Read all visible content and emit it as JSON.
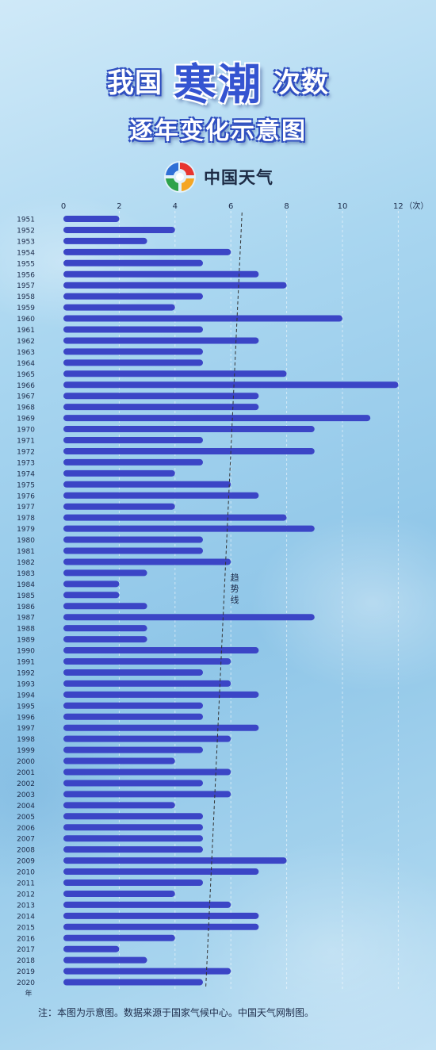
{
  "header": {
    "title_left": "我国",
    "title_main": "寒潮",
    "title_right": "次数",
    "subtitle": "逐年变化示意图"
  },
  "brand": {
    "logo_text": "中国天气"
  },
  "colors": {
    "bar": "#3b45c6",
    "bar_highlight": "#5a66e0",
    "title_blue": "#3554d1",
    "trend_line": "#333333"
  },
  "chart_data": {
    "type": "bar",
    "orientation": "horizontal",
    "title": "我国寒潮次数逐年变化示意图",
    "xlabel": "（次）",
    "ylabel": "年",
    "xlim": [
      0,
      12
    ],
    "x_ticks": [
      0,
      2,
      4,
      6,
      8,
      10,
      12
    ],
    "categories": [
      "1951",
      "1952",
      "1953",
      "1954",
      "1955",
      "1956",
      "1957",
      "1958",
      "1959",
      "1960",
      "1961",
      "1962",
      "1963",
      "1964",
      "1965",
      "1966",
      "1967",
      "1968",
      "1969",
      "1970",
      "1971",
      "1972",
      "1973",
      "1974",
      "1975",
      "1976",
      "1977",
      "1978",
      "1979",
      "1980",
      "1981",
      "1982",
      "1983",
      "1984",
      "1985",
      "1986",
      "1987",
      "1988",
      "1989",
      "1990",
      "1991",
      "1992",
      "1993",
      "1994",
      "1995",
      "1996",
      "1997",
      "1998",
      "1999",
      "2000",
      "2001",
      "2002",
      "2003",
      "2004",
      "2005",
      "2006",
      "2007",
      "2008",
      "2009",
      "2010",
      "2011",
      "2012",
      "2013",
      "2014",
      "2015",
      "2016",
      "2017",
      "2018",
      "2019",
      "2020"
    ],
    "values": [
      2,
      4,
      3,
      6,
      5,
      7,
      8,
      5,
      4,
      10,
      5,
      7,
      5,
      5,
      8,
      12,
      7,
      7,
      11,
      9,
      5,
      9,
      5,
      4,
      6,
      7,
      4,
      8,
      9,
      5,
      5,
      6,
      3,
      2,
      2,
      3,
      9,
      3,
      3,
      7,
      6,
      5,
      6,
      7,
      5,
      5,
      7,
      6,
      5,
      4,
      6,
      5,
      6,
      4,
      5,
      5,
      5,
      5,
      8,
      7,
      5,
      4,
      6,
      7,
      7,
      4,
      2,
      3,
      6,
      5
    ],
    "trend": {
      "label": "趋势线",
      "start": [
        1951,
        6.4
      ],
      "end": [
        2020,
        5.1
      ]
    },
    "grid": "vertical dashed"
  },
  "footnote": "注：本图为示意图。数据来源于国家气候中心。中国天气网制图。"
}
